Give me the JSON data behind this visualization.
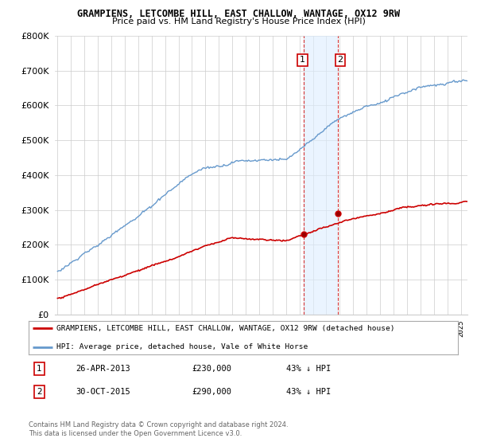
{
  "title": "GRAMPIENS, LETCOMBE HILL, EAST CHALLOW, WANTAGE, OX12 9RW",
  "subtitle": "Price paid vs. HM Land Registry's House Price Index (HPI)",
  "legend_line1": "GRAMPIENS, LETCOMBE HILL, EAST CHALLOW, WANTAGE, OX12 9RW (detached house)",
  "legend_line2": "HPI: Average price, detached house, Vale of White Horse",
  "annotation1_date": "26-APR-2013",
  "annotation1_price": "£230,000",
  "annotation1_hpi": "43% ↓ HPI",
  "annotation2_date": "30-OCT-2015",
  "annotation2_price": "£290,000",
  "annotation2_hpi": "43% ↓ HPI",
  "footnote": "Contains HM Land Registry data © Crown copyright and database right 2024.\nThis data is licensed under the Open Government Licence v3.0.",
  "hpi_color": "#6699cc",
  "price_color": "#cc0000",
  "shade_color": "#ddeeff",
  "annotation_box_color": "#cc0000",
  "ylim": [
    0,
    800000
  ],
  "yticks": [
    0,
    100000,
    200000,
    300000,
    400000,
    500000,
    600000,
    700000,
    800000
  ],
  "sale1_year": 2013.32,
  "sale1_price": 230000,
  "sale2_year": 2015.83,
  "sale2_price": 290000,
  "shade_xmin": 2013.32,
  "shade_xmax": 2015.83,
  "xmin": 1994.8,
  "xmax": 2025.5
}
